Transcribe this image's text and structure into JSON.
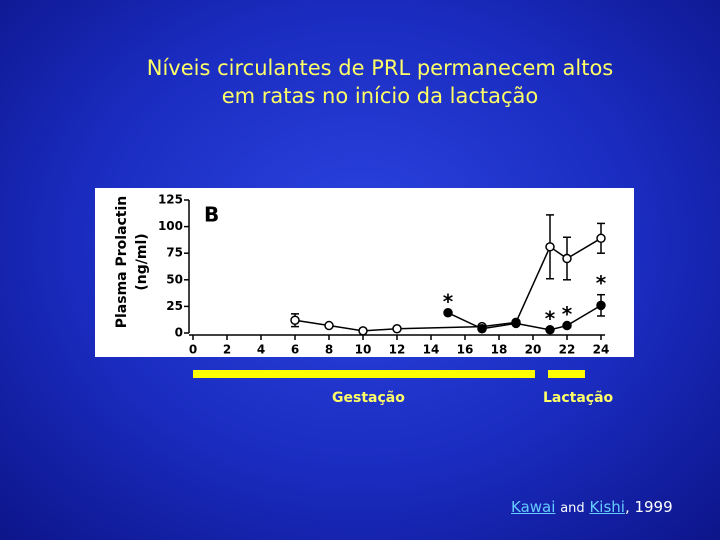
{
  "slide": {
    "title_lines": [
      "Níveis circulantes de PRL permanecem altos",
      "em ratas no início da lactação"
    ],
    "gestation_label": "Gestação",
    "lactation_label": "Lactação",
    "citation": {
      "author1": "Kawai",
      "and": "and",
      "author2": "Kishi",
      "year": ", 1999"
    }
  },
  "chart_data": {
    "type": "line",
    "panel_label": "B",
    "ylabel_lines": [
      "Plasma Prolactin",
      "(ng/ml)"
    ],
    "xlim": [
      0,
      24
    ],
    "xticks": [
      0,
      2,
      4,
      6,
      8,
      10,
      12,
      14,
      16,
      18,
      20,
      22,
      24
    ],
    "ylim": [
      0,
      125
    ],
    "yticks": [
      0,
      25,
      50,
      75,
      100,
      125
    ],
    "series": [
      {
        "marker": "open",
        "color": "#000000",
        "x": [
          6,
          8,
          10,
          12,
          17,
          19,
          21,
          22,
          24
        ],
        "values": [
          12,
          7,
          2,
          4,
          6,
          10,
          81,
          70,
          89
        ],
        "errors": [
          6,
          null,
          null,
          null,
          null,
          null,
          30,
          20,
          14
        ]
      },
      {
        "marker": "filled",
        "color": "#000000",
        "x": [
          15,
          17,
          19,
          21,
          22,
          24
        ],
        "values": [
          19,
          4,
          9,
          3,
          7,
          26
        ],
        "errors": [
          null,
          null,
          null,
          null,
          null,
          10
        ]
      }
    ],
    "annotations": [
      {
        "text": "*",
        "x": 15
      },
      {
        "text": "*",
        "x": 21
      },
      {
        "text": "*",
        "x": 22
      },
      {
        "text": "*",
        "x": 24
      }
    ]
  }
}
